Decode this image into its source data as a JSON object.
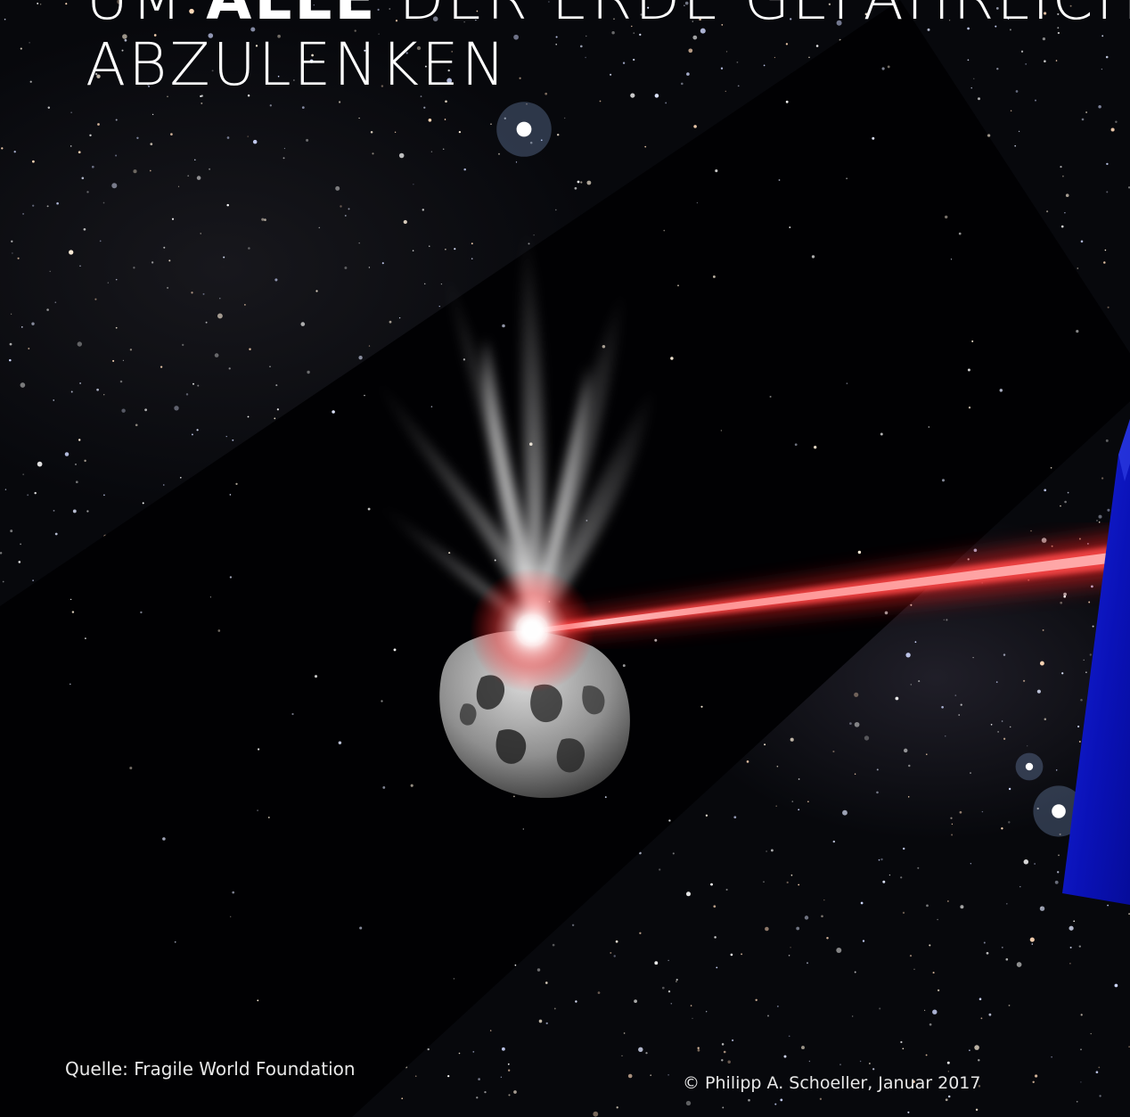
{
  "title": {
    "line1_prefix": "UM ",
    "line1_bold": "ALLE",
    "line1_suffix": " DER ERDE GEFÄHRLICH",
    "line2": "ABZULENKEN"
  },
  "footer": {
    "source": "Quelle: Fragile World Foundation",
    "copyright": "© Philipp A. Schoeller, Januar 2017"
  },
  "colors": {
    "text": "#ffffff",
    "laser": "#ff3b3b",
    "accent_card": "#0a14c8",
    "background": "#07080c"
  },
  "illustration": {
    "subject": "asteroid-hit-by-laser",
    "icons": [
      "asteroid-icon",
      "laser-beam-icon",
      "dust-plume-icon"
    ]
  }
}
